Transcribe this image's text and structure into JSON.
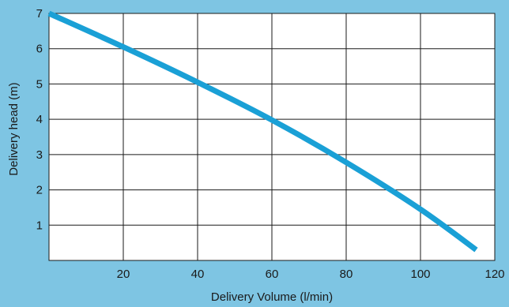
{
  "chart_data": {
    "type": "line",
    "title": "",
    "xlabel": "Delivery Volume (l/min)",
    "ylabel": "Delivery head (m)",
    "xlim": [
      0,
      120
    ],
    "ylim": [
      0,
      7
    ],
    "x_ticks": [
      20,
      40,
      60,
      80,
      100,
      120
    ],
    "y_ticks": [
      1,
      2,
      3,
      4,
      5,
      6,
      7
    ],
    "grid": true,
    "colors": {
      "background": "#7ec5e3",
      "plot": "#ffffff",
      "line": "#1aa0d6",
      "grid": "#1a1a1a"
    },
    "series": [
      {
        "x": [
          0,
          20,
          40,
          60,
          80,
          100,
          115
        ],
        "y": [
          7.0,
          6.05,
          5.05,
          3.98,
          2.78,
          1.45,
          0.3
        ]
      }
    ]
  }
}
